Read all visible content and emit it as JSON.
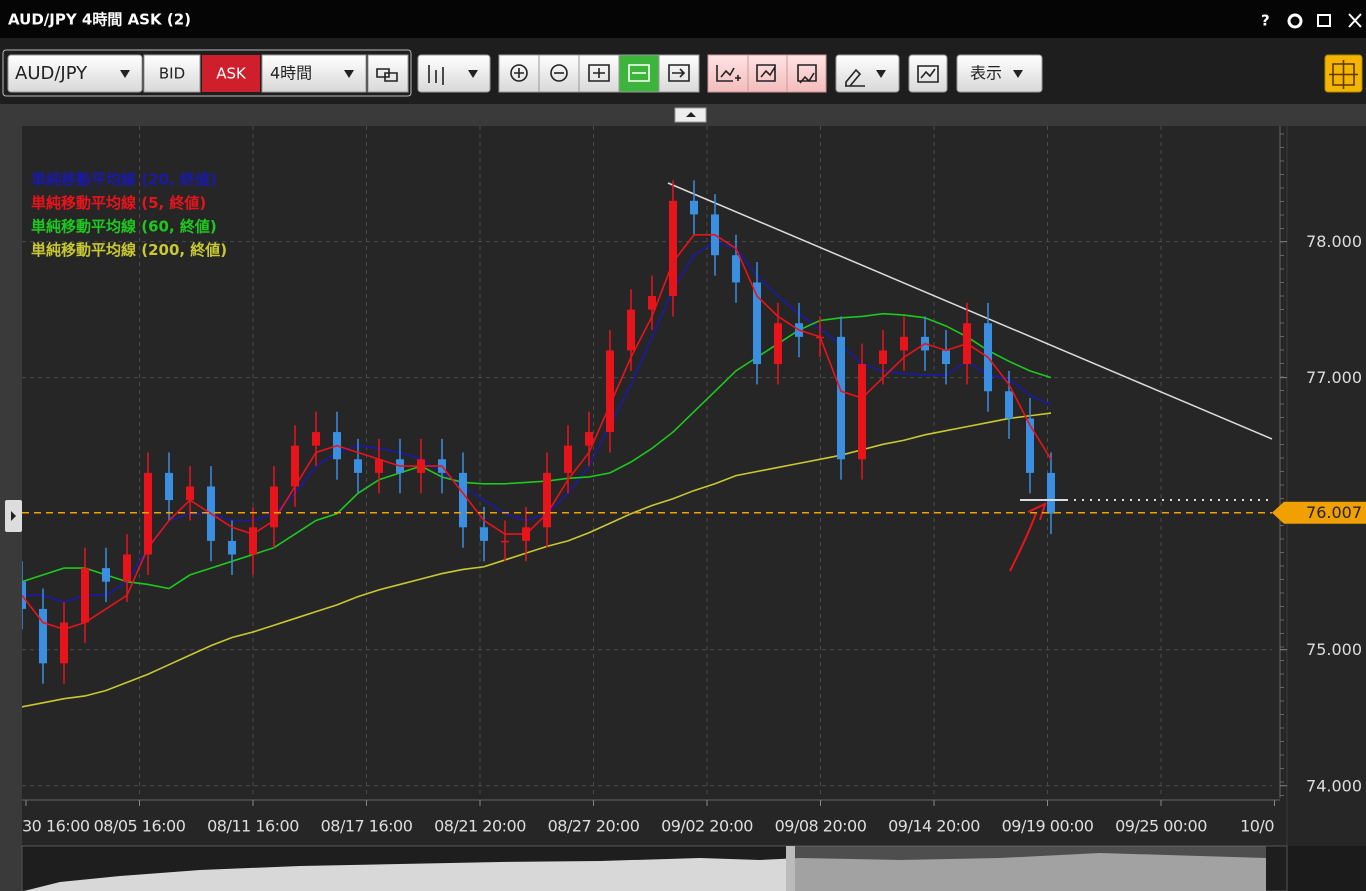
{
  "window": {
    "title": "AUD/JPY 4時間 ASK (2)"
  },
  "toolbar": {
    "symbol": "AUD/JPY",
    "bid": "BID",
    "ask": "ASK",
    "timeframe": "4時間",
    "display": "表示"
  },
  "chart_data": {
    "type": "candlestick",
    "ylim": [
      73.91,
      78.85
    ],
    "yticks": [
      {
        "value": 74,
        "label": "74.000"
      },
      {
        "value": 75,
        "label": "75.000"
      },
      {
        "value": 77,
        "label": "77.000"
      },
      {
        "value": 78,
        "label": "78.000"
      }
    ],
    "xtick_labels": [
      "30 16:00",
      "08/05 16:00",
      "08/11 16:00",
      "08/17 16:00",
      "08/21 20:00",
      "08/27 20:00",
      "09/02 20:00",
      "09/08 20:00",
      "09/14 20:00",
      "09/19 00:00",
      "09/25 00:00",
      "10/0"
    ],
    "grid": true,
    "up_color": "#e8141c",
    "down_color": "#3a8fe0",
    "current_price": 76.007,
    "current_price_color": "#f0a000",
    "open": [
      75.5,
      75.3,
      74.9,
      75.2,
      75.6,
      75.5,
      75.7,
      76.3,
      76.1,
      76.2,
      75.8,
      75.7,
      75.9,
      76.2,
      76.5,
      76.6,
      76.4,
      76.3,
      76.4,
      76.3,
      76.4,
      76.3,
      75.9,
      75.8,
      75.8,
      75.9,
      76.3,
      76.5,
      76.6,
      77.2,
      77.5,
      77.6,
      78.3,
      78.2,
      77.9,
      77.7,
      77.1,
      77.4,
      77.3,
      77.3,
      76.4,
      77.1,
      77.2,
      77.3,
      77.2,
      77.1,
      77.4,
      76.9,
      76.7,
      76.3
    ],
    "high": [
      75.65,
      75.45,
      75.35,
      75.75,
      75.75,
      75.85,
      76.45,
      76.45,
      76.35,
      76.35,
      75.95,
      76.05,
      76.35,
      76.65,
      76.75,
      76.75,
      76.55,
      76.55,
      76.55,
      76.55,
      76.55,
      76.45,
      76.05,
      75.95,
      76.05,
      76.45,
      76.65,
      76.75,
      77.35,
      77.65,
      77.75,
      78.45,
      78.45,
      78.35,
      78.05,
      77.85,
      77.55,
      77.55,
      77.45,
      77.45,
      77.25,
      77.35,
      77.45,
      77.45,
      77.35,
      77.55,
      77.55,
      77.05,
      76.85,
      76.45
    ],
    "low": [
      75.15,
      74.75,
      74.75,
      75.05,
      75.35,
      75.35,
      75.55,
      75.95,
      75.95,
      75.65,
      75.55,
      75.55,
      75.75,
      76.05,
      76.35,
      76.25,
      76.15,
      76.15,
      76.15,
      76.15,
      76.15,
      75.75,
      75.65,
      75.65,
      75.65,
      75.75,
      76.15,
      76.35,
      76.45,
      77.05,
      77.35,
      77.45,
      78.05,
      77.75,
      77.55,
      76.95,
      76.95,
      77.15,
      77.15,
      76.25,
      76.25,
      76.95,
      77.05,
      77.05,
      76.95,
      76.95,
      76.75,
      76.55,
      76.15,
      75.85
    ],
    "close": [
      75.3,
      74.9,
      75.2,
      75.6,
      75.5,
      75.7,
      76.3,
      76.1,
      76.2,
      75.8,
      75.7,
      75.9,
      76.2,
      76.5,
      76.6,
      76.4,
      76.3,
      76.4,
      76.3,
      76.4,
      76.3,
      75.9,
      75.8,
      75.8,
      75.9,
      76.3,
      76.5,
      76.6,
      77.2,
      77.5,
      77.6,
      78.3,
      78.2,
      77.9,
      77.7,
      77.1,
      77.4,
      77.3,
      77.3,
      76.4,
      77.1,
      77.2,
      77.3,
      77.2,
      77.1,
      77.4,
      76.9,
      76.7,
      76.3,
      76.0
    ],
    "series": [
      {
        "name": "単純移動平均線 (20, 終値)",
        "color": "#1a1aa8",
        "values": [
          75.4,
          75.4,
          75.35,
          75.4,
          75.4,
          75.5,
          75.75,
          75.95,
          76.0,
          76.0,
          75.95,
          75.95,
          76.0,
          76.15,
          76.35,
          76.45,
          76.5,
          76.48,
          76.45,
          76.4,
          76.3,
          76.2,
          76.1,
          76.0,
          75.95,
          76.0,
          76.15,
          76.35,
          76.65,
          76.95,
          77.3,
          77.65,
          77.9,
          78.0,
          77.95,
          77.75,
          77.6,
          77.47,
          77.36,
          77.24,
          77.1,
          77.05,
          77.03,
          77.02,
          77.02,
          77.12,
          77.02,
          76.99,
          76.87,
          76.8
        ]
      },
      {
        "name": "単純移動平均線 (5, 終値)",
        "color": "#e8141c",
        "values": [
          75.4,
          75.2,
          75.15,
          75.2,
          75.3,
          75.4,
          75.75,
          75.95,
          76.1,
          76.0,
          75.9,
          75.85,
          75.95,
          76.2,
          76.45,
          76.5,
          76.45,
          76.4,
          76.35,
          76.35,
          76.35,
          76.15,
          75.95,
          75.85,
          75.85,
          76.0,
          76.25,
          76.45,
          76.8,
          77.15,
          77.45,
          77.85,
          78.05,
          78.05,
          77.95,
          77.6,
          77.45,
          77.35,
          77.3,
          76.9,
          76.85,
          77.0,
          77.15,
          77.25,
          77.2,
          77.25,
          77.15,
          76.95,
          76.65,
          76.4
        ]
      },
      {
        "name": "単純移動平均線 (60, 終値)",
        "color": "#1ec81e",
        "values": [
          75.5,
          75.55,
          75.6,
          75.6,
          75.55,
          75.5,
          75.48,
          75.45,
          75.55,
          75.6,
          75.65,
          75.7,
          75.75,
          75.85,
          75.95,
          76.0,
          76.15,
          76.25,
          76.3,
          76.35,
          76.27,
          76.23,
          76.22,
          76.22,
          76.23,
          76.24,
          76.26,
          76.27,
          76.3,
          76.38,
          76.48,
          76.6,
          76.75,
          76.9,
          77.05,
          77.15,
          77.25,
          77.35,
          77.42,
          77.44,
          77.45,
          77.47,
          77.46,
          77.44,
          77.38,
          77.3,
          77.2,
          77.12,
          77.05,
          77.0
        ]
      },
      {
        "name": "単純移動平均線 (200, 終値)",
        "color": "#c8c832",
        "values": [
          74.58,
          74.61,
          74.64,
          74.66,
          74.7,
          74.76,
          74.82,
          74.89,
          74.96,
          75.03,
          75.09,
          75.13,
          75.18,
          75.23,
          75.28,
          75.33,
          75.39,
          75.44,
          75.48,
          75.52,
          75.56,
          75.59,
          75.61,
          75.66,
          75.71,
          75.76,
          75.8,
          75.86,
          75.93,
          76.0,
          76.06,
          76.11,
          76.17,
          76.22,
          76.28,
          76.31,
          76.34,
          76.37,
          76.4,
          76.43,
          76.47,
          76.51,
          76.54,
          76.58,
          76.61,
          76.64,
          76.67,
          76.7,
          76.72,
          76.74
        ]
      }
    ]
  }
}
